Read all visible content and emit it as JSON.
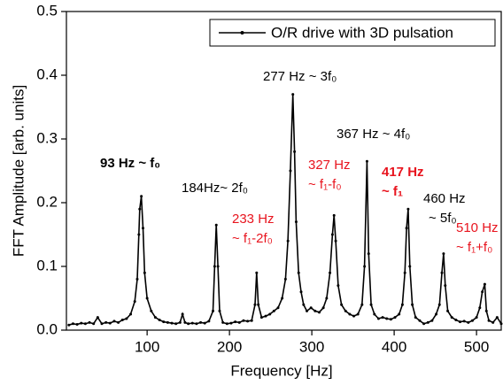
{
  "chart_data": {
    "type": "line",
    "xlabel": "Frequency [Hz]",
    "ylabel": "FFT Amplitude [arb. units]",
    "xlim": [
      2,
      530
    ],
    "ylim": [
      0,
      0.5
    ],
    "xticks": [
      100,
      200,
      300,
      400,
      500
    ],
    "yticks": [
      {
        "value": 0,
        "label": "0.0"
      },
      0.1,
      0.2,
      0.3,
      0.4,
      0.5
    ],
    "legend": "upper right",
    "x": [
      5,
      10,
      15,
      20,
      25,
      30,
      35,
      40,
      45,
      50,
      55,
      60,
      65,
      70,
      75,
      80,
      85,
      88,
      90,
      91,
      93,
      95,
      97,
      100,
      105,
      110,
      115,
      120,
      125,
      130,
      135,
      140,
      143,
      146,
      150,
      155,
      160,
      165,
      170,
      175,
      180,
      182,
      184,
      186,
      188,
      192,
      197,
      202,
      207,
      212,
      217,
      222,
      227,
      231,
      233,
      235,
      239,
      244,
      249,
      254,
      259,
      264,
      268,
      271,
      274,
      277,
      279,
      281,
      284,
      287,
      290,
      294,
      299,
      304,
      309,
      314,
      318,
      322,
      325,
      327,
      329,
      332,
      336,
      341,
      346,
      351,
      356,
      361,
      364,
      367,
      369,
      372,
      376,
      381,
      386,
      391,
      396,
      401,
      406,
      410,
      413,
      415,
      417,
      419,
      422,
      426,
      431,
      436,
      441,
      446,
      451,
      455,
      458,
      460,
      462,
      465,
      470,
      475,
      480,
      485,
      490,
      495,
      500,
      504,
      507,
      510,
      512,
      515,
      520,
      525,
      530
    ],
    "series": [
      {
        "name": "O/R drive with 3D pulsation",
        "color": "#000000",
        "values": [
          0.008,
          0.01,
          0.009,
          0.011,
          0.01,
          0.012,
          0.01,
          0.02,
          0.01,
          0.012,
          0.011,
          0.014,
          0.012,
          0.016,
          0.018,
          0.025,
          0.045,
          0.08,
          0.15,
          0.19,
          0.21,
          0.16,
          0.09,
          0.05,
          0.03,
          0.02,
          0.016,
          0.013,
          0.012,
          0.011,
          0.01,
          0.012,
          0.025,
          0.012,
          0.01,
          0.011,
          0.01,
          0.012,
          0.011,
          0.014,
          0.03,
          0.1,
          0.165,
          0.1,
          0.03,
          0.012,
          0.01,
          0.011,
          0.013,
          0.012,
          0.015,
          0.014,
          0.015,
          0.04,
          0.09,
          0.04,
          0.02,
          0.022,
          0.025,
          0.03,
          0.035,
          0.05,
          0.08,
          0.14,
          0.25,
          0.37,
          0.28,
          0.17,
          0.09,
          0.06,
          0.04,
          0.03,
          0.035,
          0.03,
          0.028,
          0.035,
          0.05,
          0.09,
          0.15,
          0.18,
          0.14,
          0.07,
          0.04,
          0.03,
          0.025,
          0.022,
          0.025,
          0.04,
          0.1,
          0.265,
          0.12,
          0.04,
          0.025,
          0.018,
          0.02,
          0.018,
          0.017,
          0.02,
          0.025,
          0.04,
          0.09,
          0.16,
          0.19,
          0.1,
          0.04,
          0.02,
          0.015,
          0.01,
          0.012,
          0.015,
          0.025,
          0.04,
          0.09,
          0.12,
          0.07,
          0.03,
          0.02,
          0.016,
          0.013,
          0.014,
          0.012,
          0.015,
          0.02,
          0.035,
          0.06,
          0.072,
          0.03,
          0.015,
          0.012,
          0.02,
          0.01
        ]
      }
    ],
    "annotations": [
      {
        "lines": [
          "93 Hz ~ f₀"
        ],
        "color": "#000000",
        "bold": true
      },
      {
        "lines": [
          "184Hz~ 2f₀"
        ],
        "color": "#000000",
        "bold": false
      },
      {
        "lines": [
          "233 Hz",
          "~ f₁-2f₀"
        ],
        "color": "#e8141e",
        "bold": false
      },
      {
        "lines": [
          "277 Hz ~ 3f₀"
        ],
        "color": "#000000",
        "bold": false
      },
      {
        "lines": [
          "367 Hz ~ 4f₀"
        ],
        "color": "#000000",
        "bold": false
      },
      {
        "lines": [
          "327 Hz",
          "~ f₁-f₀"
        ],
        "color": "#e8141e",
        "bold": false
      },
      {
        "lines": [
          "417 Hz",
          "~ f₁"
        ],
        "color": "#e8141e",
        "bold": true
      },
      {
        "lines": [
          "460 Hz",
          "~ 5f₀"
        ],
        "color": "#000000",
        "bold": false
      },
      {
        "lines": [
          "510 Hz",
          "~ f₁+f₀"
        ],
        "color": "#e8141e",
        "bold": false
      }
    ]
  }
}
